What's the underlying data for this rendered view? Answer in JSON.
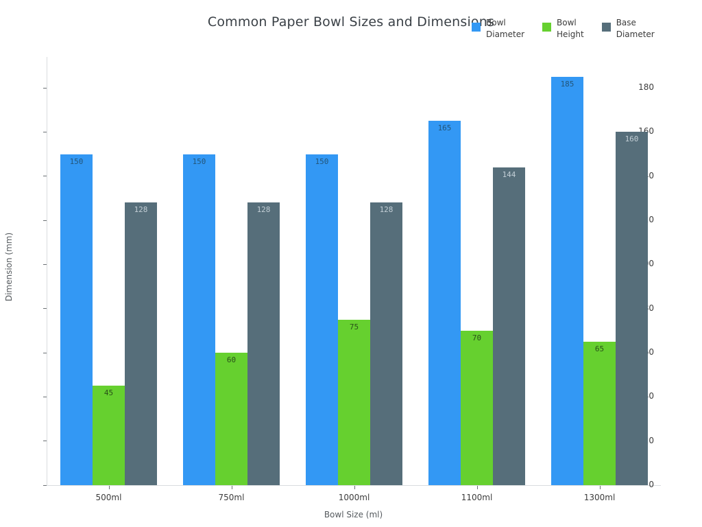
{
  "page": {
    "background": "#ffffff"
  },
  "chart_data": {
    "type": "bar",
    "title": "Common Paper Bowl Sizes and Dimensions",
    "xlabel": "Bowl Size (ml)",
    "ylabel": "Dimension (mm)",
    "categories": [
      "500ml",
      "750ml",
      "1000ml",
      "1100ml",
      "1300ml"
    ],
    "series": [
      {
        "name": "Bowl Diameter",
        "color": "#3398f4",
        "label_color": "#235578",
        "values": [
          150,
          150,
          150,
          165,
          185
        ]
      },
      {
        "name": "Bowl Height",
        "color": "#66d02f",
        "label_color": "#285019",
        "values": [
          45,
          60,
          75,
          70,
          65
        ]
      },
      {
        "name": "Base Diameter",
        "color": "#566e7a",
        "label_color": "#c3cfd6",
        "values": [
          128,
          128,
          128,
          144,
          160
        ]
      }
    ],
    "y_ticks": [
      0,
      20,
      40,
      60,
      80,
      100,
      120,
      140,
      160,
      180
    ],
    "ylim": [
      0,
      194
    ],
    "grid": false,
    "bar_value_labels": true,
    "legend": {
      "position": "top-right",
      "items": [
        {
          "label": "Bowl\nDiameter",
          "color": "#3398f4"
        },
        {
          "label": "Bowl\nHeight",
          "color": "#66d02f"
        },
        {
          "label": "Base\nDiameter",
          "color": "#566e7a"
        }
      ]
    }
  }
}
